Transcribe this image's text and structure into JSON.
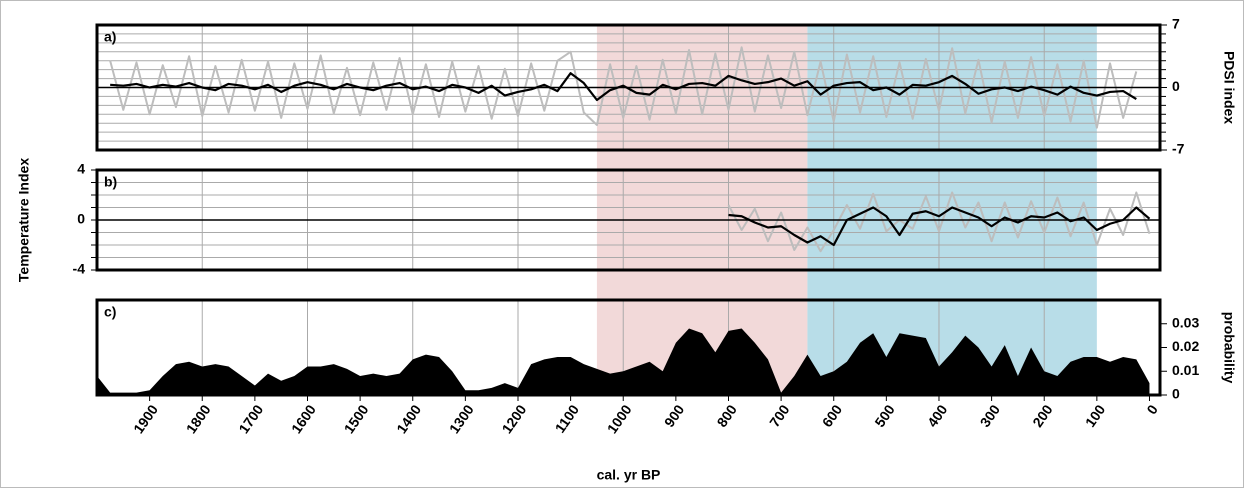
{
  "chart_data": [
    {
      "type": "line",
      "label": "a)",
      "ylabel": "PDSI index",
      "yaxis_side": "right",
      "xlim": [
        2000,
        -20
      ],
      "ylim": [
        -7,
        7
      ],
      "yticks": [
        -7,
        0,
        7
      ],
      "ygrid": [
        -6,
        -5,
        -4,
        -3,
        -2,
        -1,
        1,
        2,
        3,
        4,
        5,
        6
      ],
      "xgrid": [
        1800,
        1600,
        1400,
        1200,
        1000,
        800,
        600,
        400,
        200
      ],
      "highlights": [
        {
          "from": 1050,
          "to": 650,
          "color": "#f2d9d9"
        },
        {
          "from": 650,
          "to": 100,
          "color": "#b8dde8"
        }
      ],
      "x": [
        1975,
        1950,
        1925,
        1900,
        1875,
        1850,
        1825,
        1800,
        1775,
        1750,
        1725,
        1700,
        1675,
        1650,
        1625,
        1600,
        1575,
        1550,
        1525,
        1500,
        1475,
        1450,
        1425,
        1400,
        1375,
        1350,
        1325,
        1300,
        1275,
        1250,
        1225,
        1200,
        1175,
        1150,
        1125,
        1100,
        1075,
        1050,
        1025,
        1000,
        975,
        950,
        925,
        900,
        875,
        850,
        825,
        800,
        775,
        750,
        725,
        700,
        675,
        650,
        625,
        600,
        575,
        550,
        525,
        500,
        475,
        450,
        425,
        400,
        375,
        350,
        325,
        300,
        275,
        250,
        225,
        200,
        175,
        150,
        125,
        100,
        75,
        50,
        25
      ],
      "series": [
        {
          "color": "#bdbdbd",
          "width": 2,
          "values": [
            3,
            -2.5,
            2.8,
            -3,
            2.5,
            -2.2,
            3.5,
            -3.2,
            2.4,
            -2.8,
            3.1,
            -2.6,
            2.9,
            -3.4,
            2.7,
            -2.4,
            3.6,
            -2.9,
            2.2,
            -3.1,
            2.8,
            -2.5,
            3.3,
            -3.0,
            2.6,
            -3.3,
            2.9,
            -2.7,
            2.4,
            -3.5,
            2.1,
            -3.2,
            2.7,
            -2.6,
            3.0,
            4.0,
            -2.8,
            -4.2,
            2.6,
            -3.4,
            2.4,
            -3.6,
            3.1,
            -2.9,
            4.2,
            -3.0,
            3.8,
            -2.5,
            4.5,
            -2.7,
            3.6,
            -2.3,
            4.0,
            -3.1,
            2.9,
            -3.8,
            3.7,
            -2.8,
            3.5,
            -3.3,
            2.8,
            -3.5,
            3.2,
            -2.6,
            4.4,
            -2.9,
            3.1,
            -3.9,
            2.9,
            -3.4,
            3.4,
            -3.2,
            2.6,
            -3.8,
            3.0,
            -4.5,
            2.7,
            -3.4,
            1.8
          ]
        },
        {
          "color": "#000000",
          "width": 2.2,
          "values": [
            0.3,
            0.2,
            0.4,
            0,
            0.3,
            0.1,
            0.5,
            0,
            -0.3,
            0.4,
            0.2,
            -0.2,
            0.3,
            -0.5,
            0.2,
            0.6,
            0.3,
            -0.2,
            0.4,
            0,
            -0.3,
            0.2,
            0.5,
            -0.2,
            0.1,
            -0.4,
            0.3,
            0,
            -0.6,
            0.2,
            -0.9,
            -0.5,
            -0.2,
            0.3,
            -0.4,
            1.6,
            0.5,
            -1.4,
            -0.3,
            0.2,
            -0.6,
            -0.8,
            0.3,
            -0.2,
            0.4,
            0.5,
            0.2,
            1.3,
            0.8,
            0.4,
            0.6,
            1.0,
            0.2,
            0.7,
            -0.8,
            0.2,
            0.5,
            0.6,
            -0.3,
            0,
            -0.8,
            0.3,
            0.2,
            0.6,
            1.3,
            0.4,
            -0.7,
            -0.2,
            0,
            -0.4,
            0.1,
            -0.3,
            -0.8,
            0.1,
            -0.6,
            -0.9,
            -0.5,
            -0.4,
            -1.3
          ]
        }
      ]
    },
    {
      "type": "line",
      "label": "b)",
      "ylabel": "Temperature Index",
      "yaxis_side": "left",
      "xlim": [
        2000,
        -20
      ],
      "ylim": [
        -4,
        4
      ],
      "yticks": [
        -4,
        0,
        4
      ],
      "ygrid": [
        -3,
        -2,
        -1,
        1,
        2,
        3
      ],
      "xgrid": [
        1800,
        1600,
        1400,
        1200,
        1000,
        800,
        600,
        400,
        200
      ],
      "x": [
        800,
        775,
        750,
        725,
        700,
        675,
        650,
        625,
        600,
        575,
        550,
        525,
        500,
        475,
        450,
        425,
        400,
        375,
        350,
        325,
        300,
        275,
        250,
        225,
        200,
        175,
        150,
        125,
        100,
        75,
        50,
        25,
        0
      ],
      "series": [
        {
          "color": "#bdbdbd",
          "width": 2,
          "values": [
            1.2,
            -0.8,
            0.9,
            -1.7,
            0.6,
            -2.4,
            -0.6,
            -2.5,
            -0.8,
            1.2,
            -0.7,
            2.1,
            -0.9,
            0,
            -0.7,
            1.9,
            -0.9,
            2.2,
            -0.6,
            1.4,
            -1.7,
            1.4,
            -1.4,
            1.5,
            -1.0,
            1.8,
            -1.3,
            1.4,
            -2.0,
            0.9,
            -1.2,
            2.2,
            -1.1
          ]
        },
        {
          "color": "#000000",
          "width": 2.2,
          "values": [
            0.4,
            0.3,
            -0.2,
            -0.6,
            -0.5,
            -1.2,
            -1.8,
            -1.3,
            -2.0,
            0,
            0.5,
            1.0,
            0.3,
            -1.2,
            0.5,
            0.7,
            0.3,
            1.0,
            0.6,
            0.2,
            -0.5,
            0.2,
            -0.2,
            0.3,
            0.2,
            0.6,
            -0.1,
            0.2,
            -0.8,
            -0.3,
            0,
            1.0,
            0.1
          ]
        }
      ]
    },
    {
      "type": "area",
      "label": "c)",
      "ylabel": "probability",
      "yaxis_side": "right",
      "xlim": [
        2000,
        -20
      ],
      "ylim": [
        0,
        0.04
      ],
      "yticks": [
        0,
        0.01,
        0.02,
        0.03
      ],
      "xgrid": [
        1800,
        1600,
        1400,
        1200,
        1000,
        800,
        600,
        400,
        200
      ],
      "xlabel": "cal. yr BP",
      "xticks": [
        1900,
        1800,
        1700,
        1600,
        1500,
        1400,
        1300,
        1200,
        1100,
        1000,
        900,
        800,
        700,
        600,
        500,
        400,
        300,
        200,
        100,
        0
      ],
      "color": "#000000",
      "x": [
        2000,
        1975,
        1950,
        1925,
        1900,
        1875,
        1850,
        1825,
        1800,
        1775,
        1750,
        1725,
        1700,
        1675,
        1650,
        1625,
        1600,
        1575,
        1550,
        1525,
        1500,
        1475,
        1450,
        1425,
        1400,
        1375,
        1350,
        1325,
        1300,
        1275,
        1250,
        1225,
        1200,
        1175,
        1150,
        1125,
        1100,
        1075,
        1050,
        1025,
        1000,
        975,
        950,
        925,
        900,
        875,
        850,
        825,
        800,
        775,
        750,
        725,
        700,
        675,
        650,
        625,
        600,
        575,
        550,
        525,
        500,
        475,
        450,
        425,
        400,
        375,
        350,
        325,
        300,
        275,
        250,
        225,
        200,
        175,
        150,
        125,
        100,
        75,
        50,
        25,
        0
      ],
      "values": [
        0.008,
        0.001,
        0.001,
        0.001,
        0.002,
        0.008,
        0.013,
        0.014,
        0.012,
        0.013,
        0.012,
        0.008,
        0.004,
        0.009,
        0.006,
        0.008,
        0.012,
        0.012,
        0.013,
        0.011,
        0.008,
        0.009,
        0.008,
        0.009,
        0.015,
        0.017,
        0.016,
        0.01,
        0.002,
        0.002,
        0.003,
        0.005,
        0.003,
        0.013,
        0.015,
        0.016,
        0.016,
        0.013,
        0.011,
        0.009,
        0.01,
        0.012,
        0.014,
        0.01,
        0.022,
        0.028,
        0.026,
        0.018,
        0.027,
        0.028,
        0.022,
        0.015,
        0.001,
        0.008,
        0.017,
        0.008,
        0.01,
        0.014,
        0.022,
        0.026,
        0.016,
        0.026,
        0.025,
        0.024,
        0.012,
        0.018,
        0.025,
        0.02,
        0.012,
        0.021,
        0.008,
        0.02,
        0.01,
        0.008,
        0.014,
        0.016,
        0.016,
        0.014,
        0.016,
        0.015,
        0.005
      ]
    }
  ]
}
